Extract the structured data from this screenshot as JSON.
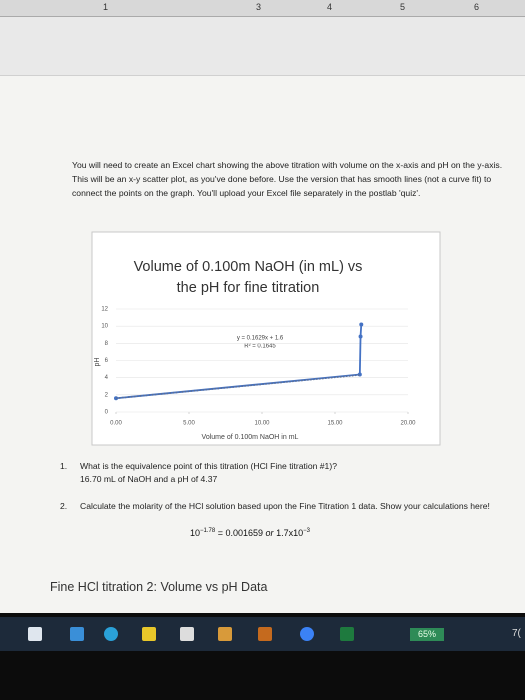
{
  "ruler": {
    "marks": [
      "1",
      "3",
      "4",
      "5",
      "6"
    ]
  },
  "document": {
    "paragraph": "You will need to create an Excel chart showing the above titration with volume on the x-axis and pH on the y-axis. This will be an x-y scatter plot, as you've done before. Use the version that has smooth lines (not a curve fit) to connect the points on the graph. You'll upload your Excel file separately in the postlab 'quiz'.",
    "questions": [
      {
        "number": "1.",
        "text": "What is the equivalence point of this titration (HCl Fine titration #1)?",
        "answer": "16.70 mL of NaOH and a pH of 4.37"
      },
      {
        "number": "2.",
        "text": "Calculate the molarity of the HCl solution based upon the Fine Titration 1 data. Show your calculations here!"
      }
    ],
    "formula": {
      "base": "10",
      "exp": "−1.78",
      "result": "= 0.001659",
      "or": "or",
      "base2": "1.7x10",
      "exp2": "−3"
    },
    "heading": "Fine HCl titration 2: Volume vs pH Data"
  },
  "taskbar": {
    "battery": "65%",
    "clock": "7("
  },
  "chart_data": {
    "type": "scatter",
    "title": [
      "Volume of 0.100m NaOH (in mL) vs",
      "the pH for fine titration"
    ],
    "x_label": "Volume of 0.100m NaOH in mL",
    "y_label": "pH",
    "annotations": [
      "y = 0.1629x + 1.6",
      "R² = 0.1645"
    ],
    "series": [
      {
        "x": [
          0,
          16.7,
          16.75,
          16.8
        ],
        "values": [
          1.6,
          4.37,
          8.8,
          10.2
        ],
        "color": "#4472c4",
        "style": "solid"
      },
      {
        "x": [
          0,
          16.7
        ],
        "values": [
          1.6,
          4.32
        ],
        "color": "#5b6f95",
        "style": "dotted"
      }
    ],
    "xlim": [
      0,
      20
    ],
    "xticks": [
      {
        "value": 0,
        "label": "0.00"
      },
      {
        "value": 5,
        "label": "5.00"
      },
      {
        "value": 10,
        "label": "10.00"
      },
      {
        "value": 15,
        "label": "15.00"
      },
      {
        "value": 20,
        "label": "20.00"
      }
    ],
    "ylim": [
      0,
      12
    ],
    "yticks": [
      0,
      2,
      4,
      6,
      8,
      10,
      12
    ]
  }
}
